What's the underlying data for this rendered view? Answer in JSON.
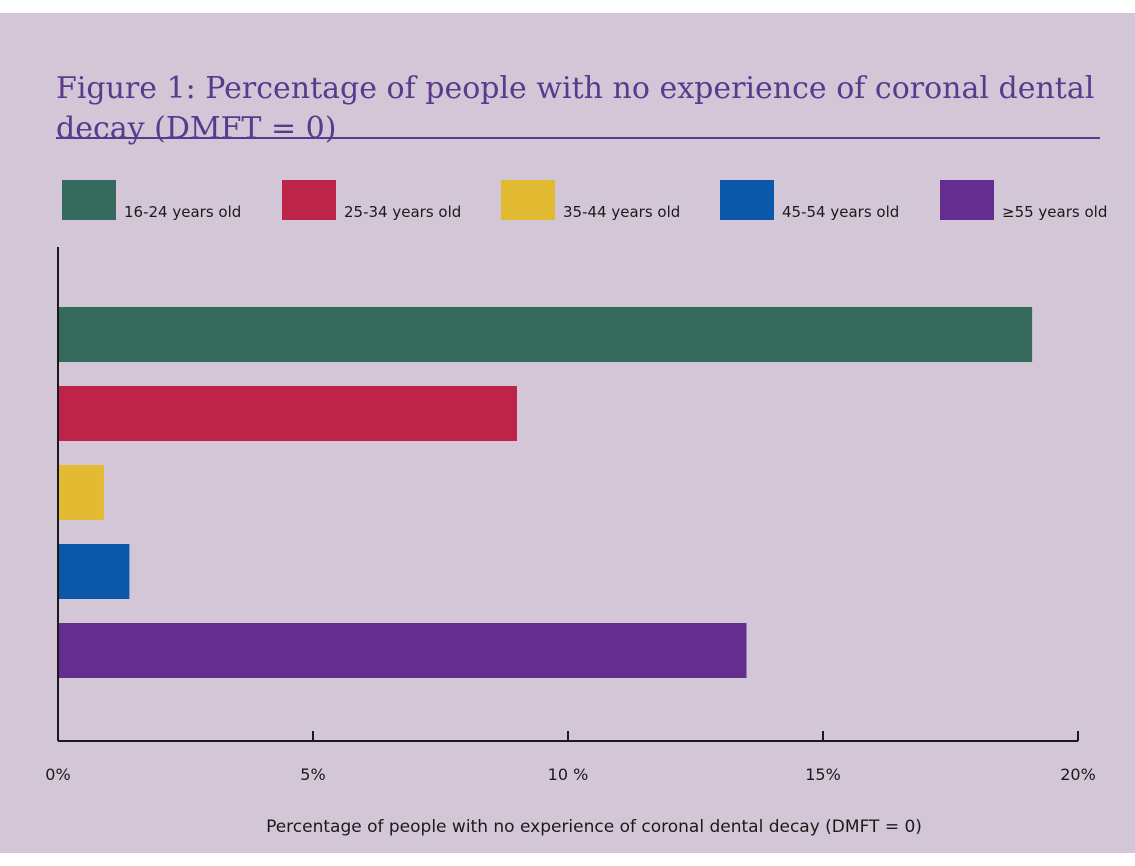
{
  "chart_data": {
    "type": "bar",
    "orientation": "horizontal",
    "title": "Figure 1: Percentage of people with no experience of coronal dental decay (DMFT = 0)",
    "xlabel": "Percentage of people with no experience of coronal dental decay (DMFT = 0)",
    "ylabel": "",
    "xlim": [
      0,
      20
    ],
    "x_ticks": [
      "0%",
      "5%",
      "10 %",
      "15%",
      "20%"
    ],
    "legend_position": "top",
    "grid": false,
    "series": [
      {
        "name": "16-24 years old",
        "value": 19.1,
        "color": "#356a5c"
      },
      {
        "name": "25-34 years old",
        "value": 9.0,
        "color": "#be2449"
      },
      {
        "name": "35-44 years old",
        "value": 0.9,
        "color": "#e3bb33"
      },
      {
        "name": "45-54 years old",
        "value": 1.4,
        "color": "#0b58a8"
      },
      {
        "name": "≥55 years old",
        "value": 13.5,
        "color": "#652d90"
      }
    ]
  }
}
